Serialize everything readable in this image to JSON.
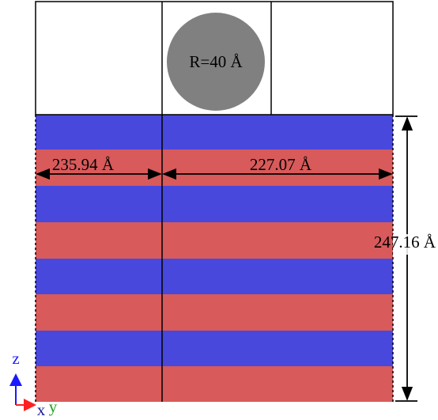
{
  "labels": {
    "radius": "R=40 Å",
    "left_width": "235.94 Å",
    "right_width": "227.07 Å",
    "height": "247.16 Å"
  },
  "axes": {
    "z": "z",
    "x": "x",
    "y": "y"
  }
}
